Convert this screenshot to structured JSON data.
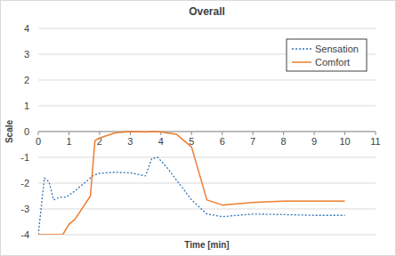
{
  "chart_data": {
    "type": "line",
    "title": "Overall",
    "x_label": "Time [min]",
    "y_label": "Scale",
    "xlim": [
      0,
      11
    ],
    "xticks": [
      0,
      1,
      2,
      3,
      4,
      5,
      6,
      7,
      8,
      9,
      10,
      11
    ],
    "ylim": [
      -4,
      4
    ],
    "yticks": [
      -4,
      -3,
      -2,
      -1,
      0,
      1,
      2,
      3,
      4
    ],
    "grid": true,
    "legend": "top-right",
    "series": [
      {
        "name": "Sensation",
        "color": "#2e75b6",
        "line_style": "dotted",
        "x": [
          0,
          0.2,
          0.35,
          0.5,
          0.7,
          0.9,
          1.2,
          1.5,
          1.8,
          2.0,
          2.5,
          3.0,
          3.5,
          3.7,
          3.9,
          4.2,
          5.0,
          5.5,
          6.0,
          7.0,
          8.0,
          9.0,
          10.0
        ],
        "values": [
          -4,
          -1.8,
          -1.95,
          -2.65,
          -2.55,
          -2.55,
          -2.3,
          -2.0,
          -1.7,
          -1.62,
          -1.58,
          -1.6,
          -1.72,
          -1.05,
          -1.0,
          -1.4,
          -2.65,
          -3.2,
          -3.3,
          -3.2,
          -3.22,
          -3.25,
          -3.25
        ]
      },
      {
        "name": "Comfort",
        "color": "#ed7d31",
        "line_style": "solid",
        "x": [
          0,
          0.8,
          1.0,
          1.2,
          1.7,
          1.85,
          2.0,
          2.5,
          3.0,
          3.5,
          3.75,
          4.0,
          4.5,
          5.0,
          5.5,
          6.0,
          7.0,
          8.0,
          9.0,
          10.0
        ],
        "values": [
          -4,
          -4,
          -3.6,
          -3.4,
          -2.5,
          -0.35,
          -0.25,
          -0.05,
          0,
          -0.02,
          0,
          -0.02,
          -0.1,
          -0.6,
          -2.65,
          -2.85,
          -2.75,
          -2.7,
          -2.7,
          -2.7
        ]
      }
    ]
  }
}
